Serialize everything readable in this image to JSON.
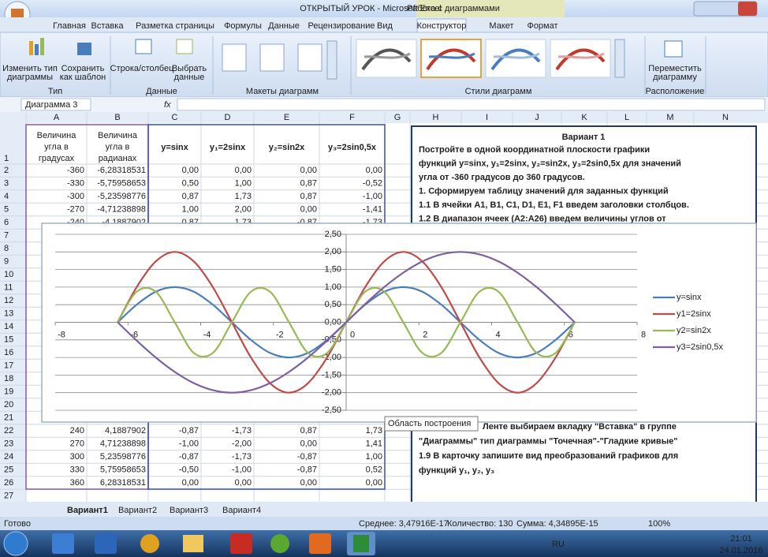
{
  "window": {
    "title": "ОТКРЫТЫЙ УРОК - Microsoft Excel",
    "context_tab": "Работа с диаграммами"
  },
  "ribbon": {
    "tabs": [
      "Главная",
      "Вставка",
      "Разметка страницы",
      "Формулы",
      "Данные",
      "Рецензирование",
      "Вид",
      "Конструктор",
      "Макет",
      "Формат"
    ],
    "active_tab": 7,
    "groups": [
      {
        "name": "Тип",
        "buttons": [
          [
            "Изменить тип",
            "диаграммы"
          ],
          [
            "Сохранить",
            "как шаблон"
          ]
        ]
      },
      {
        "name": "Данные",
        "buttons": [
          [
            "Строка/столбец"
          ],
          [
            "Выбрать",
            "данные"
          ]
        ]
      },
      {
        "name": "Макеты диаграмм"
      },
      {
        "name": "Стили диаграмм"
      },
      {
        "name": "Расположение",
        "buttons": [
          [
            "Переместить",
            "диаграмму"
          ]
        ]
      }
    ]
  },
  "formula_bar": {
    "name_box": "Диаграмма 3",
    "fx": "fx"
  },
  "sheet": {
    "columns": [
      "A",
      "B",
      "C",
      "D",
      "E",
      "F",
      "G",
      "H",
      "I",
      "J",
      "K",
      "L",
      "M",
      "N"
    ],
    "row_numbers": [
      1,
      2,
      3,
      4,
      5,
      6,
      7,
      8,
      9,
      10,
      11,
      12,
      13,
      14,
      15,
      16,
      17,
      18,
      19,
      20,
      21,
      22,
      23,
      24,
      25,
      26,
      27
    ],
    "header": [
      [
        "Величина",
        "угла в",
        "градусах"
      ],
      [
        "Величина",
        "угла в",
        "радианах"
      ],
      [
        "y=sinx"
      ],
      [
        "y₁=2sinx"
      ],
      [
        "y₂=sin2x"
      ],
      [
        "y₃=2sin0,5x"
      ]
    ],
    "top_rows": [
      [
        "-360",
        "-6,28318531",
        "0,00",
        "0,00",
        "0,00",
        "0,00"
      ],
      [
        "-330",
        "-5,75958653",
        "0,50",
        "1,00",
        "0,87",
        "-0,52"
      ],
      [
        "-300",
        "-5,23598776",
        "0,87",
        "1,73",
        "0,87",
        "-1,00"
      ],
      [
        "-270",
        "-4,71238898",
        "1,00",
        "2,00",
        "0,00",
        "-1,41"
      ],
      [
        "-240",
        "-4,1887902",
        "0,87",
        "1,73",
        "-0,87",
        "-1,73"
      ]
    ],
    "bottom_rows": [
      [
        "240",
        "4,1887902",
        "-0,87",
        "-1,73",
        "0,87",
        "1,73"
      ],
      [
        "270",
        "4,71238898",
        "-1,00",
        "-2,00",
        "0,00",
        "1,41"
      ],
      [
        "300",
        "5,23598776",
        "-0,87",
        "-1,73",
        "-0,87",
        "1,00"
      ],
      [
        "330",
        "5,75958653",
        "-0,50",
        "-1,00",
        "-0,87",
        "0,52"
      ],
      [
        "360",
        "6,28318531",
        "0,00",
        "0,00",
        "0,00",
        "0,00"
      ]
    ]
  },
  "instructions": {
    "title": "Вариант 1",
    "top_lines": [
      "Постройте  в одной координатной плоскости графики",
      "функций  y=sinx, y₁=2sinx, y₂=sin2x, y₃=2sin0,5x для значений",
      "угла от -360 градусов до 360 градусов.",
      "1. Сформируем таблицу значений для заданных функций",
      "1.1  В ячейки A1, B1, C1, D1, E1, F1 введем заголовки столбцов.",
      "1.2 В диапазон ячеек (A2:A26) введем величины углов от"
    ],
    "bottom_lines": [
      "Ленте выбираем вкладку \"Вставка\" в группе",
      "\"Диаграммы\" тип диаграммы \"Точечная\"-\"Гладкие кривые\"",
      "1.9 В карточку запишите вид преобразований графиков для",
      "функций y₁, y₂, y₃"
    ]
  },
  "tooltip": "Область построения",
  "chart_data": {
    "type": "scatter-smooth",
    "x": [
      -6.2832,
      -5.7596,
      -5.236,
      -4.7124,
      -4.1888,
      -3.6652,
      -3.1416,
      -2.618,
      -2.0944,
      -1.5708,
      -1.0472,
      -0.5236,
      0,
      0.5236,
      1.0472,
      1.5708,
      2.0944,
      2.618,
      3.1416,
      3.6652,
      4.1888,
      4.7124,
      5.236,
      5.7596,
      6.2832
    ],
    "series": [
      {
        "name": "y=sinx",
        "color": "#4a7ebb",
        "values": [
          0,
          0.5,
          0.87,
          1,
          0.87,
          0.5,
          0,
          -0.5,
          -0.87,
          -1,
          -0.87,
          -0.5,
          0,
          0.5,
          0.87,
          1,
          0.87,
          0.5,
          0,
          -0.5,
          -0.87,
          -1,
          -0.87,
          -0.5,
          0
        ]
      },
      {
        "name": "y1=2sinx",
        "color": "#be4b48",
        "values": [
          0,
          1,
          1.73,
          2,
          1.73,
          1,
          0,
          -1,
          -1.73,
          -2,
          -1.73,
          -1,
          0,
          1,
          1.73,
          2,
          1.73,
          1,
          0,
          -1,
          -1.73,
          -2,
          -1.73,
          -1,
          0
        ]
      },
      {
        "name": "y2=sin2x",
        "color": "#98b954",
        "values": [
          0,
          0.87,
          0.87,
          0,
          -0.87,
          -0.87,
          0,
          0.87,
          0.87,
          0,
          -0.87,
          -0.87,
          0,
          0.87,
          0.87,
          0,
          -0.87,
          -0.87,
          0,
          0.87,
          0.87,
          0,
          -0.87,
          -0.87,
          0
        ]
      },
      {
        "name": "y3=2sin0,5x",
        "color": "#7d60a0",
        "values": [
          0,
          -0.52,
          -1,
          -1.41,
          -1.73,
          -1.93,
          -2,
          -1.93,
          -1.73,
          -1.41,
          -1,
          -0.52,
          0,
          0.52,
          1,
          1.41,
          1.73,
          1.93,
          2,
          1.93,
          1.73,
          1.41,
          1,
          0.52,
          0
        ]
      }
    ],
    "xlim": [
      -8,
      8
    ],
    "xticks": [
      -8,
      -6,
      -4,
      -2,
      0,
      2,
      4,
      6,
      8
    ],
    "ylim": [
      -2.5,
      2.5
    ],
    "yticks": [
      {
        "value": -2.5,
        "label": "-2,50"
      },
      {
        "value": -2,
        "label": "-2,00"
      },
      {
        "value": -1.5,
        "label": "-1,50"
      },
      {
        "value": -1,
        "label": "-1,00"
      },
      {
        "value": -0.5,
        "label": "-0,50"
      },
      {
        "value": 0,
        "label": "0,00"
      },
      {
        "value": 0.5,
        "label": "0,50"
      },
      {
        "value": 1,
        "label": "1,00"
      },
      {
        "value": 1.5,
        "label": "1,50"
      },
      {
        "value": 2,
        "label": "2,00"
      },
      {
        "value": 2.5,
        "label": "2,50"
      }
    ],
    "grid": true,
    "legend": "right"
  },
  "sheet_tabs": [
    "Вариант1",
    "Вариант2",
    "Вариант3",
    "Вариант4"
  ],
  "status_bar": {
    "ready": "Готово",
    "average": "Среднее: 3,47916E-17",
    "count": "Количество: 130",
    "sum": "Сумма: 4,34895E-15",
    "zoom": "100%"
  },
  "taskbar": {
    "language": "RU",
    "time": "21:01",
    "date": "24.01.2016"
  }
}
